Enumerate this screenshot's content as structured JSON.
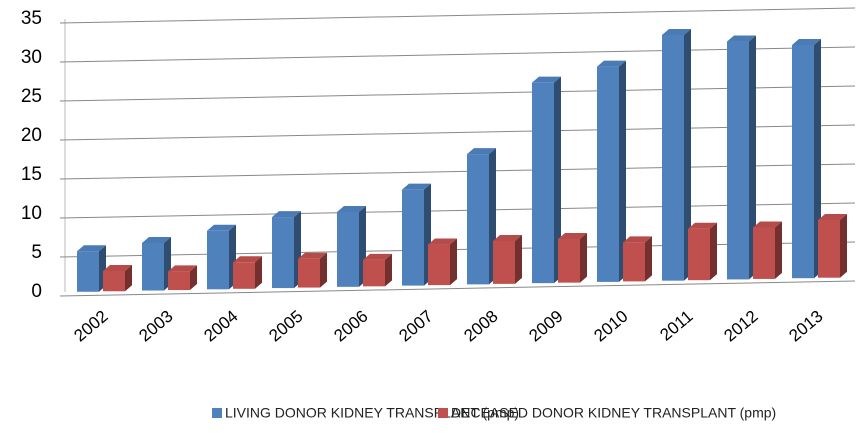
{
  "chart_data": {
    "type": "bar3d",
    "categories": [
      "2002",
      "2003",
      "2004",
      "2005",
      "2006",
      "2007",
      "2008",
      "2009",
      "2010",
      "2011",
      "2012",
      "2013"
    ],
    "series": [
      {
        "name": "LIVING DONOR KIDNEY TRANSPLANT (pmp)",
        "color": "#4f81bd",
        "values": [
          5.2,
          6.1,
          7.5,
          9.1,
          9.6,
          12.3,
          16.7,
          25.7,
          27.6,
          31.5,
          30.5,
          29.9
        ]
      },
      {
        "name": "DECEASED DONOR KIDNEY TRANSPLANT (pmp)",
        "color": "#c0504d",
        "values": [
          2.6,
          2.4,
          3.4,
          3.7,
          3.4,
          5.2,
          5.5,
          5.6,
          5.0,
          6.6,
          6.6,
          7.4
        ]
      }
    ],
    "ylim": [
      0,
      35
    ],
    "yticks": [
      0,
      5,
      10,
      15,
      20,
      25,
      30,
      35
    ],
    "grid": true,
    "legend": "bottom"
  }
}
